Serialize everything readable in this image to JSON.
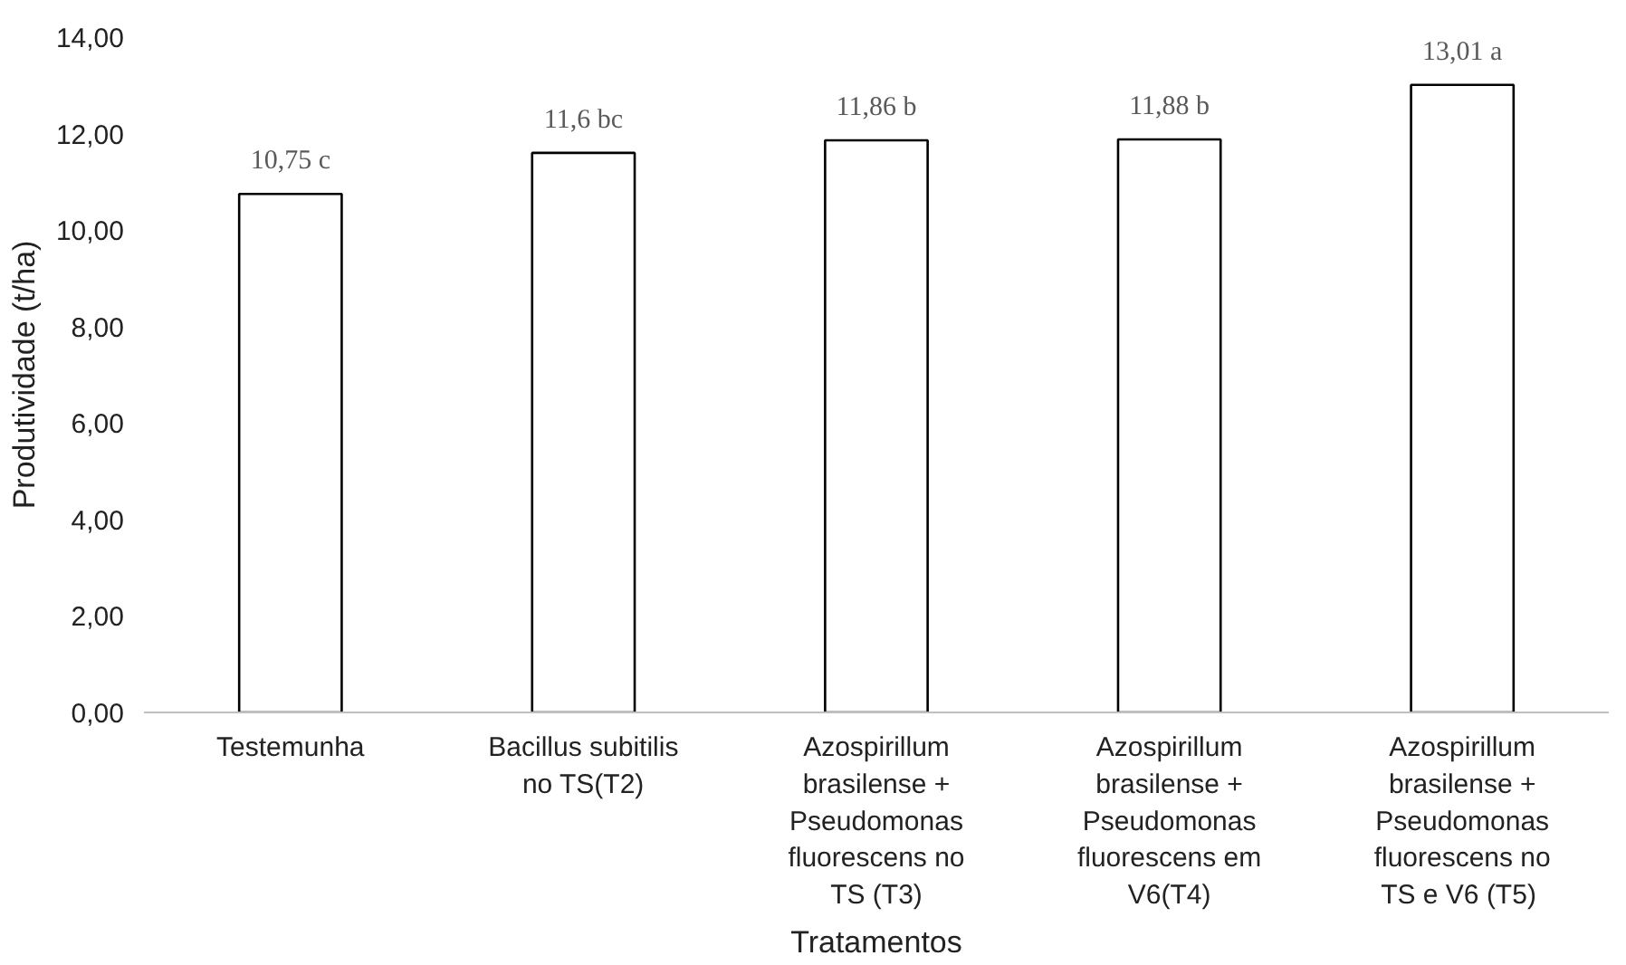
{
  "chart_data": {
    "type": "bar",
    "xlabel": "Tratamentos",
    "ylabel": "Produtividade (t/ha)",
    "categories": [
      "Testemunha",
      "Bacillus subitilis\nno TS(T2)",
      "Azospirillum\nbrasilense +\nPseudomonas\nfluorescens no\nTS (T3)",
      "Azospirillum\nbrasilense +\nPseudomonas\nfluorescens em\nV6(T4)",
      "Azospirillum\nbrasilense +\nPseudomonas\nfluorescens no\nTS e V6  (T5)"
    ],
    "values": [
      10.75,
      11.6,
      11.86,
      11.88,
      13.01
    ],
    "value_labels": [
      "10,75 c",
      "11,6 bc",
      "11,86 b",
      "11,88 b",
      "13,01 a"
    ],
    "color": "#ffffff",
    "ylim": [
      0,
      14
    ],
    "yticks": [
      {
        "value": 0,
        "label": "0,00"
      },
      {
        "value": 2,
        "label": "2,00"
      },
      {
        "value": 4,
        "label": "4,00"
      },
      {
        "value": 6,
        "label": "6,00"
      },
      {
        "value": 8,
        "label": "8,00"
      },
      {
        "value": 10,
        "label": "10,00"
      },
      {
        "value": 12,
        "label": "12,00"
      },
      {
        "value": 14,
        "label": "14,00"
      }
    ],
    "grid": false
  }
}
